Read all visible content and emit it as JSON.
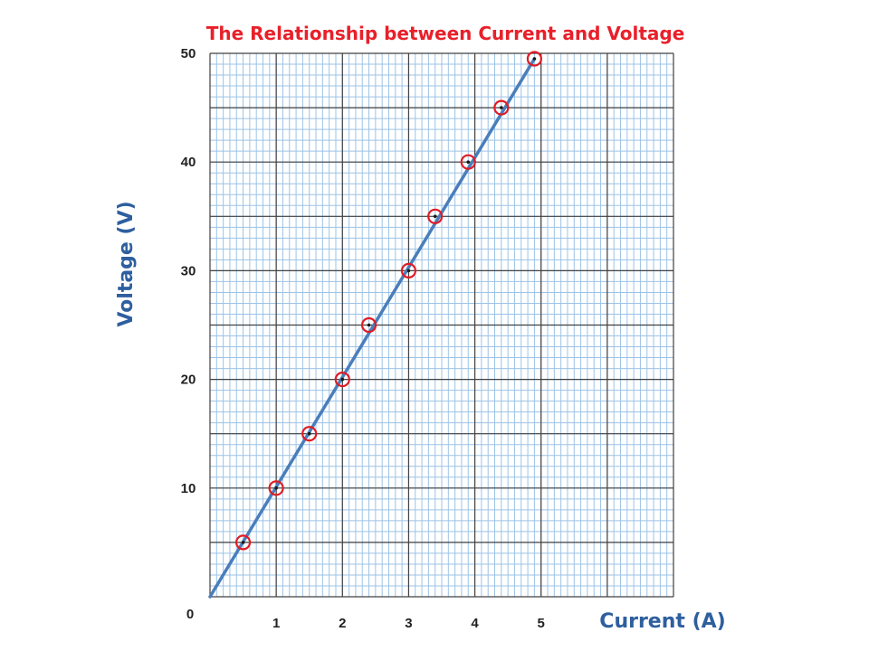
{
  "chart_data": {
    "type": "scatter",
    "title": "The Relationship between Current and Voltage",
    "xlabel": "Current  (A)",
    "ylabel": "Voltage  (V)",
    "xlim": [
      0,
      7
    ],
    "ylim": [
      0,
      50
    ],
    "x_ticks": [
      1,
      2,
      3,
      4,
      5
    ],
    "y_ticks": [
      10,
      20,
      30,
      40,
      50
    ],
    "origin_label": "0",
    "grid": true,
    "x": [
      0.5,
      1.0,
      1.5,
      2.0,
      2.4,
      3.0,
      3.4,
      3.9,
      4.4,
      4.9
    ],
    "series": [
      {
        "values": [
          5,
          10,
          15,
          20,
          25,
          30,
          35,
          40,
          45,
          49.5
        ]
      }
    ],
    "fit_line": {
      "x": [
        0,
        4.9
      ],
      "y": [
        0,
        49.5
      ]
    },
    "colors": {
      "title": "#e8202a",
      "axis_title": "#2e5f9e",
      "marker": "#e01b24",
      "line": "#4a7ebb",
      "grid_minor": "#9dc3e6",
      "grid_major": "#404040"
    }
  }
}
